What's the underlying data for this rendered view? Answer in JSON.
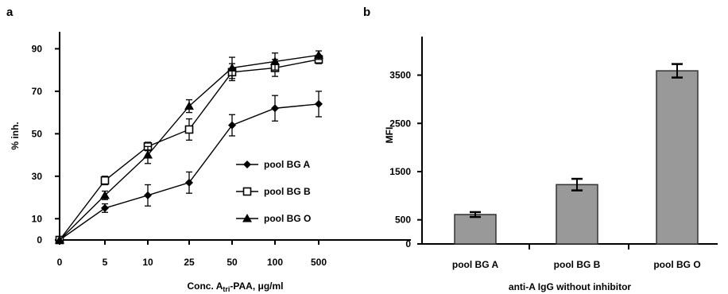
{
  "panels": {
    "a_label": "a",
    "b_label": "b"
  },
  "chart_data": [
    {
      "type": "line",
      "panel": "a",
      "title": "",
      "x": [
        "0",
        "5",
        "10",
        "25",
        "50",
        "100",
        "500"
      ],
      "xlabel_main": "Conc. A",
      "xlabel_sub": "tri",
      "xlabel_rest": "-PAA,  μg/ml",
      "ylabel": "% inh.",
      "ylim": [
        0,
        98
      ],
      "yticks": [
        0,
        10,
        30,
        50,
        70,
        90
      ],
      "grid": false,
      "legend_position": "lower-right",
      "series": [
        {
          "name": "pool BG A",
          "marker": "diamond-filled",
          "values": [
            0,
            15,
            21,
            27,
            54,
            62,
            64
          ],
          "errors": [
            0,
            2,
            5,
            5,
            5,
            6,
            6
          ]
        },
        {
          "name": "pool BG B",
          "marker": "square-open",
          "values": [
            0,
            28,
            44,
            52,
            79,
            81,
            85
          ],
          "errors": [
            0,
            2,
            2,
            5,
            4,
            4,
            2
          ]
        },
        {
          "name": "pool BG O",
          "marker": "triangle-filled",
          "values": [
            0,
            21,
            40,
            63,
            81,
            84,
            87
          ],
          "errors": [
            0,
            2,
            4,
            3,
            5,
            4,
            2
          ]
        }
      ]
    },
    {
      "type": "bar",
      "panel": "b",
      "title": "",
      "categories": [
        "pool BG A",
        "pool BG B",
        "pool BG O"
      ],
      "values": [
        610,
        1230,
        3590
      ],
      "errors": [
        50,
        120,
        140
      ],
      "xlabel": "anti-A IgG without inhibitor",
      "ylabel": "MFI",
      "ylim": [
        0,
        4300
      ],
      "yticks": [
        0,
        500,
        1500,
        2500,
        3500
      ],
      "bar_color": "#999999",
      "grid": false
    }
  ]
}
